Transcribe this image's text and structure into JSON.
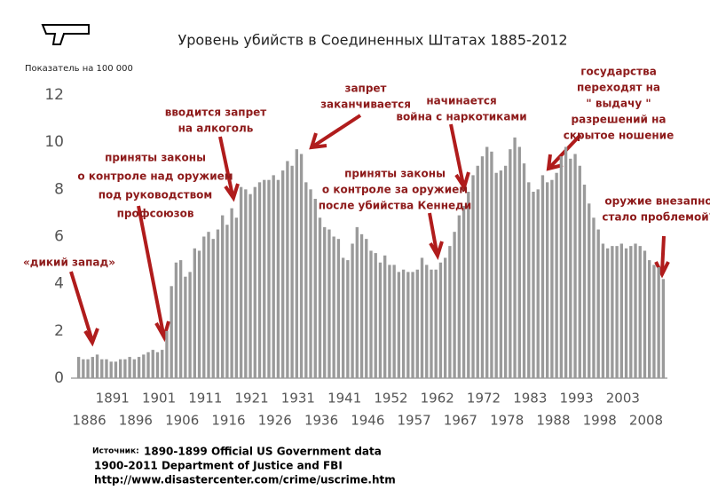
{
  "chart_data": {
    "type": "bar",
    "title": "Уровень убийств в Соединенных Штатах 1885-2012",
    "y_label": "Показатель на 100 000",
    "color": "#9a9a9a",
    "categories": [
      "1886",
      null,
      null,
      null,
      null,
      "1891",
      null,
      null,
      null,
      null,
      "1896",
      null,
      null,
      null,
      null,
      "1901",
      null,
      null,
      null,
      null,
      "1906",
      null,
      null,
      null,
      null,
      "1911",
      null,
      null,
      null,
      null,
      "1916",
      null,
      null,
      null,
      null,
      "1921",
      null,
      null,
      null,
      null,
      "1926",
      null,
      null,
      null,
      null,
      "1931",
      null,
      null,
      null,
      null,
      "1936",
      null,
      null,
      null,
      null,
      "1941",
      null,
      null,
      null,
      null,
      "1946",
      null,
      null,
      null,
      null,
      "1952",
      null,
      null,
      null,
      null,
      "1957",
      null,
      null,
      null,
      null,
      "1962",
      null,
      null,
      null,
      null,
      "1967",
      null,
      null,
      null,
      null,
      "1972",
      null,
      null,
      null,
      null,
      "1978",
      null,
      null,
      null,
      null,
      "1983",
      null,
      null,
      null,
      null,
      "1988",
      null,
      null,
      null,
      null,
      "1993",
      null,
      null,
      null,
      null,
      "1998",
      null,
      null,
      null,
      null,
      "2003",
      null,
      null,
      null,
      null,
      "2008",
      null,
      null,
      null,
      null,
      null,
      null
    ],
    "values": [
      0.9,
      0.8,
      0.8,
      0.9,
      1.0,
      0.8,
      0.8,
      0.7,
      0.7,
      0.8,
      0.8,
      0.9,
      0.8,
      0.9,
      1.0,
      1.1,
      1.2,
      1.1,
      1.2,
      2.0,
      3.9,
      4.9,
      5.0,
      4.3,
      4.5,
      5.5,
      5.4,
      6.0,
      6.2,
      5.9,
      6.3,
      6.9,
      6.5,
      7.2,
      6.8,
      8.1,
      8.0,
      7.8,
      8.1,
      8.3,
      8.4,
      8.4,
      8.6,
      8.4,
      8.8,
      9.2,
      9.0,
      9.7,
      9.5,
      8.3,
      8.0,
      7.6,
      6.8,
      6.4,
      6.3,
      6.0,
      5.9,
      5.1,
      5.0,
      5.7,
      6.4,
      6.1,
      5.9,
      5.4,
      5.3,
      4.9,
      5.2,
      4.8,
      4.8,
      4.5,
      4.6,
      4.5,
      4.5,
      4.6,
      5.1,
      4.8,
      4.6,
      4.6,
      4.9,
      5.1,
      5.6,
      6.2,
      6.9,
      7.3,
      7.9,
      8.6,
      9.0,
      9.4,
      9.8,
      9.6,
      8.7,
      8.8,
      9.0,
      9.7,
      10.2,
      9.8,
      9.1,
      8.3,
      7.9,
      8.0,
      8.6,
      8.3,
      8.4,
      8.7,
      9.4,
      9.8,
      9.3,
      9.5,
      9.0,
      8.2,
      7.4,
      6.8,
      6.3,
      5.7,
      5.5,
      5.6,
      5.6,
      5.7,
      5.5,
      5.6,
      5.7,
      5.6,
      5.4,
      5.0,
      4.8,
      4.7,
      4.2
    ],
    "ylim": [
      0,
      12
    ],
    "yticks": [
      0,
      2,
      4,
      6,
      8,
      10,
      12
    ],
    "grid": false,
    "annotations": [
      {
        "lines": [
          "«дикий запад»"
        ]
      },
      {
        "lines": [
          "приняты законы",
          "о контроле над оружием",
          "под руководством",
          "профсоюзов"
        ]
      },
      {
        "lines": [
          "вводится запрет",
          "на алкоголь"
        ]
      },
      {
        "lines": [
          "запрет",
          "заканчивается"
        ]
      },
      {
        "lines": [
          "начинается",
          "война с наркотиками"
        ]
      },
      {
        "lines": [
          "приняты законы",
          "о контроле за оружием",
          "после убийства Кеннеди"
        ]
      },
      {
        "lines": [
          "государства",
          "переходят на",
          "\" выдачу \"",
          "разрешений на",
          "скрытое ношение"
        ]
      },
      {
        "lines": [
          "оружие внезапно",
          "стало проблемой?"
        ]
      }
    ],
    "source": {
      "label": "Источник:",
      "lines": [
        "1890-1899 Official US Government data",
        "1900-2011 Department of Justice and FBI",
        "http://www.disastercenter.com/crime/uscrime.htm"
      ]
    }
  }
}
